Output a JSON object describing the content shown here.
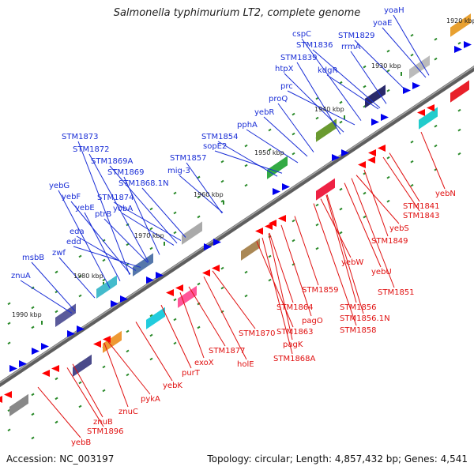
{
  "title": "Salmonella typhimurium LT2, complete genome",
  "footer": {
    "accession": "Accession: NC_003197",
    "summary": "Topology: circular; Length: 4,857,432 bp; Genes: 4,541"
  },
  "colors": {
    "plus_label": "#1a2ed6",
    "minus_label": "#e01010",
    "backbone": "#777777",
    "tick": "#2a8a2a"
  },
  "kbp_ticks": [
    "1920 kbp",
    "1930 kbp",
    "1940 kbp",
    "1950 kbp",
    "1960 kbp",
    "1970 kbp",
    "1980 kbp",
    "1990 kbp"
  ],
  "plus_genes": [
    "yoaH",
    "yoaE",
    "STM1829",
    "cspC",
    "STM1836",
    "rrmA",
    "STM1839",
    "kdgR",
    "htpX",
    "prc",
    "proQ",
    "yebR",
    "pphA",
    "STM1854",
    "sopE2",
    "STM1857",
    "mig-3",
    "STM1873",
    "STM1872",
    "STM1869A",
    "STM1869",
    "STM1868.1N",
    "yebG",
    "yebF",
    "STM1874",
    "yebE",
    "ptrB",
    "yobA",
    "eda",
    "edd",
    "zwf",
    "msbB",
    "znuA"
  ],
  "minus_genes": [
    "yebN",
    "STM1841",
    "STM1843",
    "yebS",
    "STM1849",
    "yebW",
    "yebU",
    "STM1851",
    "STM1859",
    "STM1856",
    "STM1856.1N",
    "STM1858",
    "STM1864",
    "pagO",
    "STM1863",
    "STM1870",
    "pagK",
    "STM1868A",
    "STM1877",
    "holE",
    "exoX",
    "purT",
    "yebK",
    "pykA",
    "znuC",
    "znuB",
    "STM1896",
    "yebB"
  ]
}
